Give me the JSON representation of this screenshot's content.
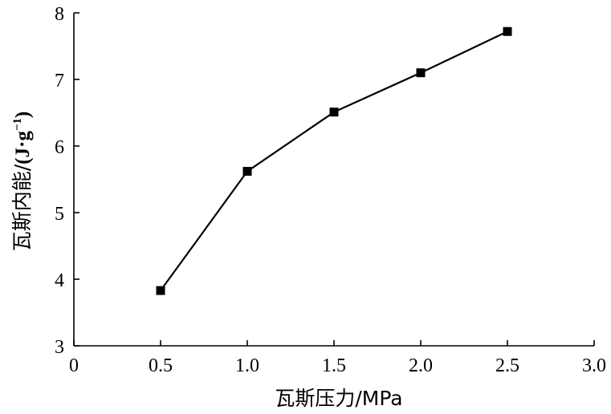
{
  "chart_data": {
    "type": "line",
    "xlabel": "瓦斯压力/MPa",
    "ylabel_main": "瓦斯内能/",
    "ylabel_unit": "(J·g",
    "ylabel_sup": "−1",
    "ylabel_close": ")",
    "xlim": [
      0,
      3.0
    ],
    "ylim": [
      3,
      8
    ],
    "x_ticks": [
      0,
      0.5,
      1.0,
      1.5,
      2.0,
      2.5,
      3.0
    ],
    "x_tick_labels": [
      "0",
      "0.5",
      "1.0",
      "1.5",
      "2.0",
      "2.5",
      "3.0"
    ],
    "y_ticks": [
      3,
      4,
      5,
      6,
      7,
      8
    ],
    "y_tick_labels": [
      "3",
      "4",
      "5",
      "6",
      "7",
      "8"
    ],
    "grid": false,
    "marker": "square",
    "series": [
      {
        "x": [
          0.5,
          1.0,
          1.5,
          2.0,
          2.5
        ],
        "values": [
          3.83,
          5.62,
          6.51,
          7.1,
          7.72
        ]
      }
    ]
  }
}
